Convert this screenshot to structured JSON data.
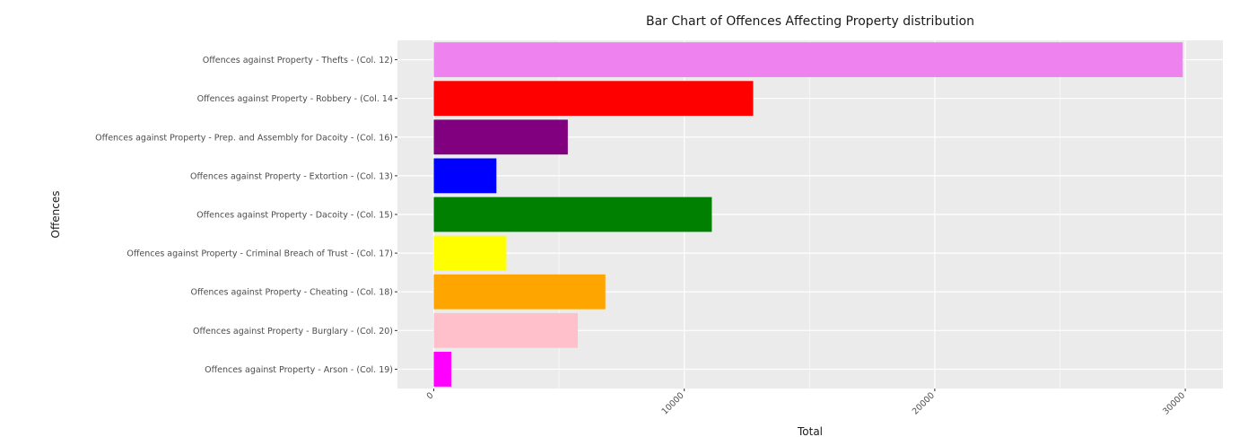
{
  "chart_data": {
    "type": "bar",
    "orientation": "horizontal",
    "title": "Bar Chart of Offences Affecting Property distribution",
    "xlabel": "Total",
    "ylabel": "Offences",
    "xlim": [
      -1450,
      31500
    ],
    "xticks": [
      0,
      10000,
      20000,
      30000
    ],
    "grid": true,
    "legend": "none",
    "categories": [
      "Offences against Property - Thefts - (Col. 12)",
      "Offences against Property - Robbery - (Col. 14",
      "Offences against Property - Prep. and Assembly for Dacoity - (Col. 16)",
      "Offences against Property - Extortion - (Col. 13)",
      "Offences against Property - Dacoity - (Col. 15)",
      "Offences against Property - Criminal Breach of Trust - (Col. 17)",
      "Offences against Property - Cheating - (Col. 18)",
      "Offences against Property - Burglary - (Col. 20)",
      "Offences against Property - Arson - (Col. 19)"
    ],
    "values": [
      29900,
      12750,
      5350,
      2500,
      11100,
      2900,
      6850,
      5750,
      700
    ],
    "colors": [
      "#ee82ee",
      "#ff0000",
      "#800080",
      "#0000ff",
      "#008000",
      "#ffff00",
      "#ffa500",
      "#ffc0cb",
      "#ff00ff"
    ]
  }
}
